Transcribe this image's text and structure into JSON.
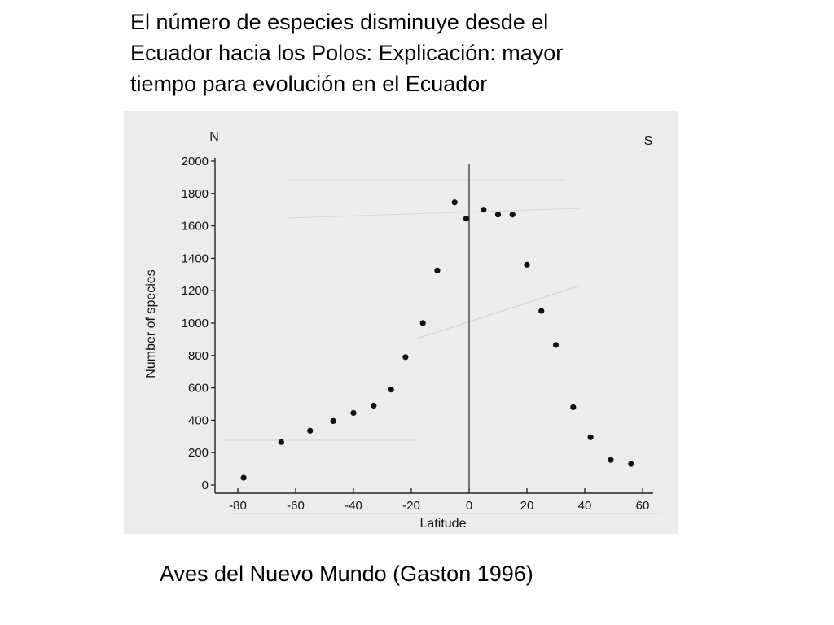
{
  "title_lines": [
    "El número de especies disminuye desde el",
    "Ecuador hacia los Polos: Explicación: mayor",
    "tiempo para evolución en el Ecuador"
  ],
  "caption": "Aves del Nuevo Mundo (Gaston 1996)",
  "chart_data": {
    "type": "scatter",
    "xlabel": "Latitude",
    "ylabel": "Number of species",
    "corner_labels": {
      "left": "N",
      "right": "S"
    },
    "xlim": [
      -82,
      62
    ],
    "ylim": [
      0,
      2000
    ],
    "x_ticks": [
      -80,
      -60,
      -40,
      -20,
      0,
      20,
      40,
      60
    ],
    "y_ticks": [
      0,
      200,
      400,
      600,
      800,
      1000,
      1200,
      1400,
      1600,
      1800,
      2000
    ],
    "vertical_reference_line_at_x": 0,
    "grid": false,
    "colors": {
      "points": "#111111",
      "axes": "#222222",
      "background": "#ececec"
    },
    "series": [
      {
        "x": [
          -78,
          -65,
          -55,
          -47,
          -40,
          -33,
          -27,
          -22,
          -16,
          -11,
          -5,
          -1,
          5,
          10,
          15,
          20,
          25,
          30,
          36,
          42,
          49,
          56
        ],
        "y": [
          45,
          265,
          335,
          395,
          445,
          490,
          590,
          790,
          1000,
          1325,
          1745,
          1645,
          1700,
          1670,
          1670,
          1360,
          1075,
          865,
          480,
          295,
          155,
          130
        ]
      }
    ]
  }
}
